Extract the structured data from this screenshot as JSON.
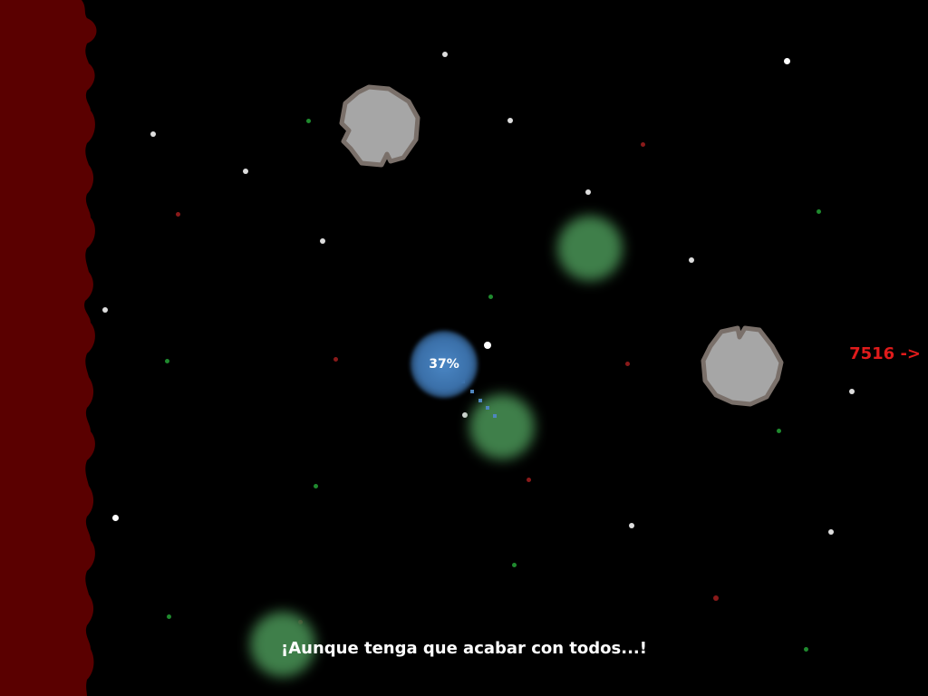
{
  "hud": {
    "player_percent": "37%",
    "distance_indicator": "7516 ->",
    "dialogue": "¡Aunque tenga que acabar con todos...!"
  },
  "colors": {
    "background": "#000000",
    "wall": "#5a0000",
    "player": "#4a86c4",
    "green_orb": "#3f7f4a",
    "asteroid_fill": "#a6a6a6",
    "asteroid_outline": "#7a706a",
    "distance_text": "#e01b1b"
  }
}
